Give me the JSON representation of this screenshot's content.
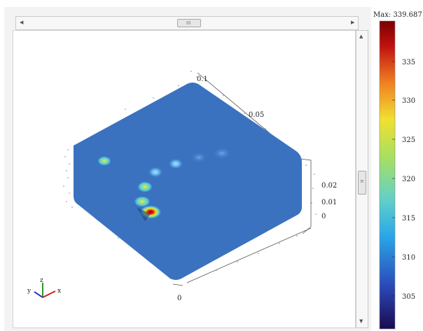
{
  "axes": {
    "y_axis_ticks": [
      "0.1",
      "0.05"
    ],
    "z_axis_ticks": [
      "0.02",
      "0.01",
      "0"
    ],
    "x_axis_ticks": [
      "0"
    ]
  },
  "triad": {
    "y": "y",
    "z": "z",
    "x": "x"
  },
  "colorbar": {
    "max_label": "Max: 339.687",
    "ticks": [
      "335",
      "330",
      "325",
      "320",
      "315",
      "310",
      "305"
    ],
    "colors": [
      "#1a0a50",
      "#2a4ab8",
      "#2aa6e8",
      "#62d0c8",
      "#a8e060",
      "#f0e030",
      "#f08020",
      "#c01010",
      "#7a0000"
    ]
  },
  "scrollbars": {
    "horizontal_thumb_grip": "III",
    "vertical_thumb_grip": "≡"
  }
}
